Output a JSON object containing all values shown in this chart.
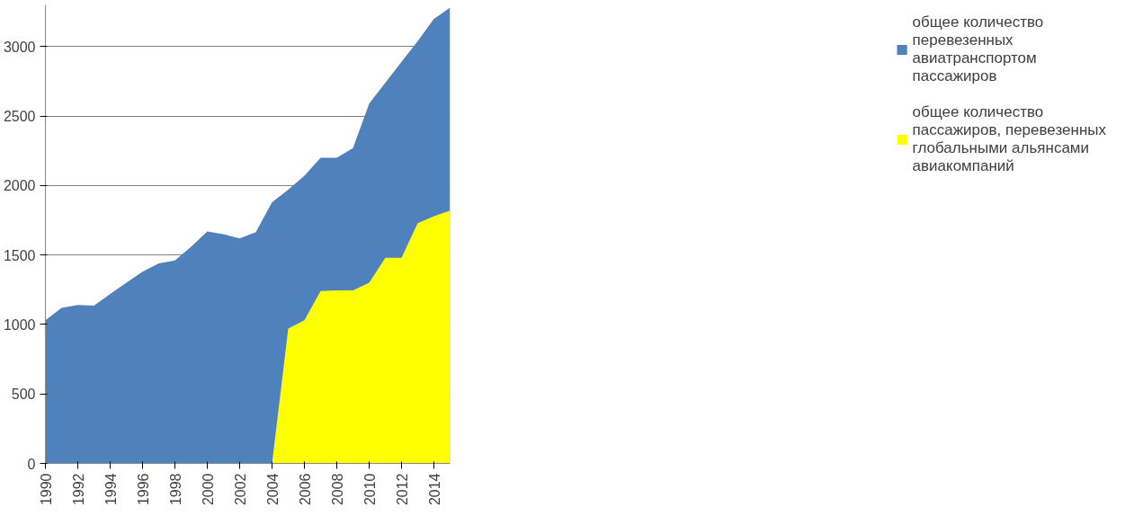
{
  "chart_data": {
    "type": "area",
    "x": [
      1990,
      1991,
      1992,
      1993,
      1994,
      1995,
      1996,
      1997,
      1998,
      1999,
      2000,
      2001,
      2002,
      2003,
      2004,
      2005,
      2006,
      2007,
      2008,
      2009,
      2010,
      2011,
      2012,
      2013,
      2014,
      2015
    ],
    "series": [
      {
        "name": "общее количество перевезенных авиатранспортом пассажиров",
        "color": "#4f81bd",
        "values": [
          1030,
          1120,
          1140,
          1135,
          1220,
          1300,
          1380,
          1440,
          1460,
          1560,
          1670,
          1650,
          1620,
          1665,
          1880,
          1970,
          2070,
          2200,
          2200,
          2270,
          2590,
          2740,
          2890,
          3040,
          3200,
          3280
        ]
      },
      {
        "name": "общее количество пассажиров, перевезенных глобальными альянсами авиакомпаний",
        "color": "#ffff00",
        "values": [
          null,
          null,
          null,
          null,
          null,
          null,
          null,
          null,
          null,
          null,
          null,
          null,
          null,
          null,
          0,
          970,
          1030,
          1240,
          1245,
          1245,
          1300,
          1480,
          1480,
          1730,
          1780,
          1820
        ]
      }
    ],
    "xlim": [
      1990,
      2015
    ],
    "xticks": [
      1990,
      1992,
      1994,
      1996,
      1998,
      2000,
      2002,
      2004,
      2006,
      2008,
      2010,
      2012,
      2014
    ],
    "ylim": [
      0,
      3300
    ],
    "yticks": [
      0,
      500,
      1000,
      1500,
      2000,
      2500,
      3000
    ],
    "grid": "y",
    "legend": "right"
  }
}
